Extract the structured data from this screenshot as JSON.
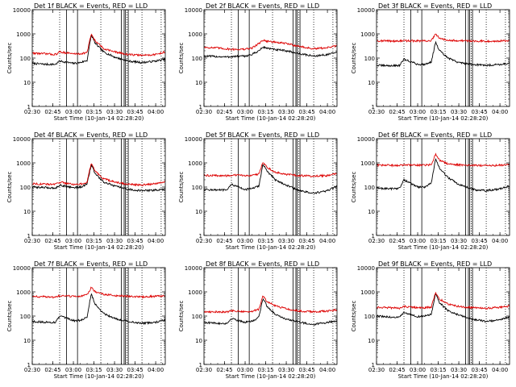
{
  "figure": {
    "xlabel": "Start Time (10-Jan-14 02:28:20)",
    "ylabel": "Counts/sec"
  },
  "chart_data": [
    {
      "type": "line",
      "title": "Det 1f BLACK = Events, RED = LLD",
      "xlabel": "Start Time (10-Jan-14 02:28:20)",
      "ylabel": "Counts/sec",
      "xtick_labels": [
        "02:30",
        "02:45",
        "03:00",
        "03:15",
        "03:30",
        "03:45",
        "04:00"
      ],
      "ytick_labels": [
        "1",
        "10",
        "100",
        "1000",
        "10000"
      ],
      "xlim": [
        "02:30",
        "04:07"
      ],
      "ylim": [
        1,
        10000
      ],
      "yscale": "log",
      "x": [
        "02:30",
        "02:40",
        "02:47",
        "02:50",
        "03:00",
        "03:05",
        "03:10",
        "03:13",
        "03:16",
        "03:22",
        "03:30",
        "03:40",
        "03:50",
        "04:00",
        "04:07"
      ],
      "series": [
        {
          "name": "Events",
          "color": "#000000",
          "values": [
            60,
            55,
            55,
            75,
            60,
            65,
            80,
            900,
            400,
            180,
            110,
            75,
            65,
            75,
            90
          ]
        },
        {
          "name": "LLD",
          "color": "#dd0000",
          "values": [
            160,
            150,
            140,
            180,
            150,
            150,
            170,
            1000,
            500,
            250,
            180,
            140,
            130,
            140,
            180
          ]
        }
      ],
      "dotted_lines": [
        "02:50",
        "03:20",
        "03:39",
        "03:50",
        "04:04"
      ],
      "solid_lines": [
        "02:55",
        "03:03",
        "03:35",
        "03:37",
        "03:38",
        "03:40"
      ]
    },
    {
      "type": "line",
      "title": "Det 2f BLACK = Events, RED = LLD",
      "xlabel": "Start Time (10-Jan-14 02:28:20)",
      "ylabel": "Counts/sec",
      "xtick_labels": [
        "02:30",
        "02:45",
        "03:00",
        "03:15",
        "03:30",
        "03:45",
        "04:00"
      ],
      "ytick_labels": [
        "1",
        "10",
        "100",
        "1000",
        "10000"
      ],
      "xlim": [
        "02:30",
        "04:07"
      ],
      "ylim": [
        1,
        10000
      ],
      "yscale": "log",
      "x": [
        "02:30",
        "02:40",
        "02:47",
        "02:50",
        "03:00",
        "03:05",
        "03:10",
        "03:13",
        "03:16",
        "03:22",
        "03:30",
        "03:40",
        "03:50",
        "04:00",
        "04:07"
      ],
      "series": [
        {
          "name": "Events",
          "color": "#000000",
          "values": [
            120,
            115,
            110,
            115,
            120,
            140,
            200,
            280,
            260,
            220,
            200,
            150,
            120,
            140,
            170
          ]
        },
        {
          "name": "LLD",
          "color": "#dd0000",
          "values": [
            280,
            260,
            240,
            230,
            230,
            260,
            400,
            550,
            500,
            450,
            400,
            300,
            240,
            270,
            320
          ]
        }
      ],
      "dotted_lines": [
        "02:50",
        "03:20",
        "03:39",
        "03:50",
        "04:04"
      ],
      "solid_lines": [
        "02:55",
        "03:03",
        "03:35",
        "03:37",
        "03:38",
        "03:40"
      ]
    },
    {
      "type": "line",
      "title": "Det 3f BLACK = Events, RED = LLD",
      "xlabel": "Start Time (10-Jan-14 02:28:20)",
      "ylabel": "Counts/sec",
      "xtick_labels": [
        "02:30",
        "02:45",
        "03:00",
        "03:15",
        "03:30",
        "03:45",
        "04:00"
      ],
      "ytick_labels": [
        "1",
        "10",
        "100",
        "1000",
        "10000"
      ],
      "xlim": [
        "02:30",
        "04:07"
      ],
      "ylim": [
        1,
        10000
      ],
      "yscale": "log",
      "x": [
        "02:30",
        "02:40",
        "02:47",
        "02:50",
        "03:00",
        "03:05",
        "03:10",
        "03:13",
        "03:16",
        "03:22",
        "03:30",
        "03:40",
        "03:50",
        "04:00",
        "04:07"
      ],
      "series": [
        {
          "name": "Events",
          "color": "#000000",
          "values": [
            50,
            48,
            50,
            90,
            55,
            55,
            70,
            450,
            200,
            100,
            65,
            55,
            50,
            55,
            60
          ]
        },
        {
          "name": "LLD",
          "color": "#dd0000",
          "values": [
            520,
            510,
            500,
            520,
            510,
            510,
            530,
            950,
            650,
            560,
            520,
            510,
            500,
            510,
            520
          ]
        }
      ],
      "dotted_lines": [
        "02:50",
        "03:20",
        "03:39",
        "03:50",
        "04:04"
      ],
      "solid_lines": [
        "02:55",
        "03:03",
        "03:35",
        "03:37",
        "03:38",
        "03:40"
      ]
    },
    {
      "type": "line",
      "title": "Det 4f BLACK = Events, RED = LLD",
      "xlabel": "Start Time (10-Jan-14 02:28:20)",
      "ylabel": "Counts/sec",
      "xtick_labels": [
        "02:30",
        "02:45",
        "03:00",
        "03:15",
        "03:30",
        "03:45",
        "04:00"
      ],
      "ytick_labels": [
        "1",
        "10",
        "100",
        "1000",
        "10000"
      ],
      "xlim": [
        "02:30",
        "04:07"
      ],
      "ylim": [
        1,
        10000
      ],
      "yscale": "log",
      "x": [
        "02:30",
        "02:40",
        "02:47",
        "02:50",
        "03:00",
        "03:05",
        "03:10",
        "03:13",
        "03:16",
        "03:22",
        "03:30",
        "03:40",
        "03:50",
        "04:00",
        "04:07"
      ],
      "series": [
        {
          "name": "Events",
          "color": "#000000",
          "values": [
            100,
            95,
            90,
            120,
            95,
            100,
            130,
            850,
            350,
            160,
            110,
            80,
            70,
            75,
            80
          ]
        },
        {
          "name": "LLD",
          "color": "#dd0000",
          "values": [
            140,
            130,
            130,
            160,
            130,
            130,
            160,
            950,
            450,
            220,
            160,
            130,
            120,
            140,
            170
          ]
        }
      ],
      "dotted_lines": [
        "02:50",
        "03:20",
        "03:39",
        "03:50",
        "04:04"
      ],
      "solid_lines": [
        "02:55",
        "03:03",
        "03:35",
        "03:37",
        "03:38",
        "03:40"
      ]
    },
    {
      "type": "line",
      "title": "Det 5f BLACK = Events, RED = LLD",
      "xlabel": "Start Time (10-Jan-14 02:28:20)",
      "ylabel": "Counts/sec",
      "xtick_labels": [
        "02:30",
        "02:45",
        "03:00",
        "03:15",
        "03:30",
        "03:45",
        "04:00"
      ],
      "ytick_labels": [
        "1",
        "10",
        "100",
        "1000",
        "10000"
      ],
      "xlim": [
        "02:30",
        "04:07"
      ],
      "ylim": [
        1,
        10000
      ],
      "yscale": "log",
      "x": [
        "02:30",
        "02:40",
        "02:47",
        "02:50",
        "03:00",
        "03:05",
        "03:10",
        "03:13",
        "03:16",
        "03:22",
        "03:30",
        "03:40",
        "03:50",
        "04:00",
        "04:07"
      ],
      "series": [
        {
          "name": "Events",
          "color": "#000000",
          "values": [
            80,
            75,
            75,
            130,
            80,
            85,
            110,
            900,
            450,
            200,
            120,
            70,
            55,
            70,
            110
          ]
        },
        {
          "name": "LLD",
          "color": "#dd0000",
          "values": [
            300,
            300,
            290,
            310,
            300,
            310,
            340,
            1100,
            650,
            420,
            330,
            300,
            280,
            300,
            360
          ]
        }
      ],
      "dotted_lines": [
        "02:50",
        "03:20",
        "03:39",
        "03:50",
        "04:04"
      ],
      "solid_lines": [
        "02:55",
        "03:03",
        "03:35",
        "03:37",
        "03:38",
        "03:40"
      ]
    },
    {
      "type": "line",
      "title": "Det 6f BLACK = Events, RED = LLD",
      "xlabel": "Start Time (10-Jan-14 02:28:20)",
      "ylabel": "Counts/sec",
      "xtick_labels": [
        "02:30",
        "02:45",
        "03:00",
        "03:15",
        "03:30",
        "03:45",
        "04:00"
      ],
      "ytick_labels": [
        "1",
        "10",
        "100",
        "1000",
        "10000"
      ],
      "xlim": [
        "02:30",
        "04:07"
      ],
      "ylim": [
        1,
        10000
      ],
      "yscale": "log",
      "x": [
        "02:30",
        "02:40",
        "02:47",
        "02:50",
        "03:00",
        "03:05",
        "03:10",
        "03:13",
        "03:16",
        "03:22",
        "03:30",
        "03:40",
        "03:50",
        "04:00",
        "04:07"
      ],
      "series": [
        {
          "name": "Events",
          "color": "#000000",
          "values": [
            90,
            85,
            90,
            200,
            100,
            100,
            150,
            1400,
            600,
            250,
            130,
            80,
            70,
            85,
            110
          ]
        },
        {
          "name": "LLD",
          "color": "#dd0000",
          "values": [
            800,
            790,
            780,
            830,
            800,
            800,
            850,
            2300,
            1300,
            900,
            830,
            790,
            780,
            800,
            850
          ]
        }
      ],
      "dotted_lines": [
        "02:50",
        "03:20",
        "03:39",
        "03:50",
        "04:04"
      ],
      "solid_lines": [
        "02:55",
        "03:03",
        "03:35",
        "03:37",
        "03:38",
        "03:40"
      ]
    },
    {
      "type": "line",
      "title": "Det 7f BLACK = Events, RED = LLD",
      "xlabel": "Start Time (10-Jan-14 02:28:20)",
      "ylabel": "Counts/sec",
      "xtick_labels": [
        "02:30",
        "02:45",
        "03:00",
        "03:15",
        "03:30",
        "03:45",
        "04:00"
      ],
      "ytick_labels": [
        "1",
        "10",
        "100",
        "1000",
        "10000"
      ],
      "xlim": [
        "02:30",
        "04:07"
      ],
      "ylim": [
        1,
        10000
      ],
      "yscale": "log",
      "x": [
        "02:30",
        "02:40",
        "02:47",
        "02:50",
        "03:00",
        "03:05",
        "03:10",
        "03:13",
        "03:16",
        "03:22",
        "03:30",
        "03:40",
        "03:50",
        "04:00",
        "04:07"
      ],
      "series": [
        {
          "name": "Events",
          "color": "#000000",
          "values": [
            60,
            55,
            55,
            100,
            65,
            65,
            90,
            850,
            300,
            130,
            80,
            60,
            50,
            55,
            70
          ]
        },
        {
          "name": "LLD",
          "color": "#dd0000",
          "values": [
            650,
            620,
            600,
            700,
            650,
            650,
            750,
            1500,
            1000,
            800,
            700,
            650,
            620,
            650,
            700
          ]
        }
      ],
      "dotted_lines": [
        "02:50",
        "03:20",
        "03:39",
        "03:50",
        "04:04"
      ],
      "solid_lines": [
        "02:55",
        "03:03",
        "03:35",
        "03:37",
        "03:38",
        "03:40"
      ]
    },
    {
      "type": "line",
      "title": "Det 8f BLACK = Events, RED = LLD",
      "xlabel": "Start Time (10-Jan-14 02:28:20)",
      "ylabel": "Counts/sec",
      "xtick_labels": [
        "02:30",
        "02:45",
        "03:00",
        "03:15",
        "03:30",
        "03:45",
        "04:00"
      ],
      "ytick_labels": [
        "1",
        "10",
        "100",
        "1000",
        "10000"
      ],
      "xlim": [
        "02:30",
        "04:07"
      ],
      "ylim": [
        1,
        10000
      ],
      "yscale": "log",
      "x": [
        "02:30",
        "02:40",
        "02:47",
        "02:50",
        "03:00",
        "03:05",
        "03:10",
        "03:13",
        "03:16",
        "03:22",
        "03:30",
        "03:40",
        "03:50",
        "04:00",
        "04:07"
      ],
      "series": [
        {
          "name": "Events",
          "color": "#000000",
          "values": [
            55,
            50,
            50,
            80,
            55,
            60,
            90,
            550,
            250,
            120,
            75,
            55,
            45,
            55,
            65
          ]
        },
        {
          "name": "LLD",
          "color": "#dd0000",
          "values": [
            150,
            150,
            145,
            170,
            150,
            155,
            190,
            700,
            400,
            260,
            200,
            160,
            150,
            160,
            180
          ]
        }
      ],
      "dotted_lines": [
        "02:50",
        "03:20",
        "03:39",
        "03:50",
        "04:04"
      ],
      "solid_lines": [
        "02:55",
        "03:03",
        "03:35",
        "03:37",
        "03:38",
        "03:40"
      ]
    },
    {
      "type": "line",
      "title": "Det 9f BLACK = Events, RED = LLD",
      "xlabel": "Start Time (10-Jan-14 02:28:20)",
      "ylabel": "Counts/sec",
      "xtick_labels": [
        "02:30",
        "02:45",
        "03:00",
        "03:15",
        "03:30",
        "03:45",
        "04:00"
      ],
      "ytick_labels": [
        "1",
        "10",
        "100",
        "1000",
        "10000"
      ],
      "xlim": [
        "02:30",
        "04:07"
      ],
      "ylim": [
        1,
        10000
      ],
      "yscale": "log",
      "x": [
        "02:30",
        "02:40",
        "02:47",
        "02:50",
        "03:00",
        "03:05",
        "03:10",
        "03:13",
        "03:16",
        "03:22",
        "03:30",
        "03:40",
        "03:50",
        "04:00",
        "04:07"
      ],
      "series": [
        {
          "name": "Events",
          "color": "#000000",
          "values": [
            100,
            90,
            90,
            140,
            95,
            100,
            120,
            800,
            350,
            170,
            110,
            75,
            60,
            70,
            90
          ]
        },
        {
          "name": "LLD",
          "color": "#dd0000",
          "values": [
            230,
            220,
            210,
            250,
            220,
            220,
            240,
            900,
            500,
            320,
            250,
            220,
            210,
            230,
            260
          ]
        }
      ],
      "dotted_lines": [
        "02:50",
        "03:20",
        "03:39",
        "03:50",
        "04:04"
      ],
      "solid_lines": [
        "02:55",
        "03:03",
        "03:35",
        "03:37",
        "03:38",
        "03:40"
      ]
    }
  ]
}
